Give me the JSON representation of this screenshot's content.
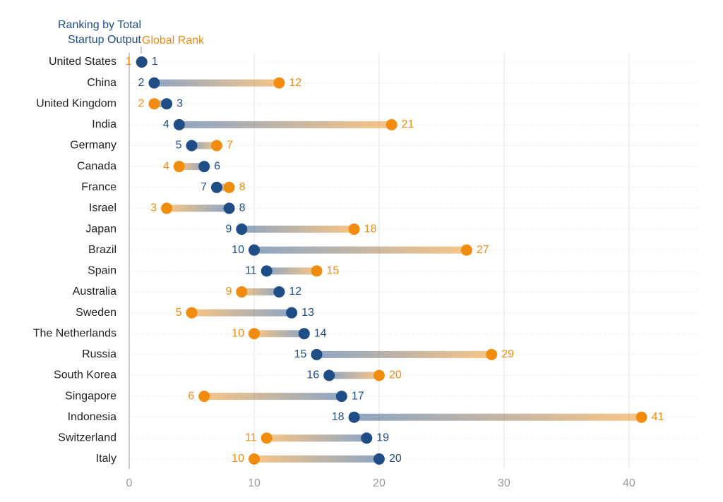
{
  "chart_data": {
    "type": "dumbbell",
    "categories": [
      "United States",
      "China",
      "United Kingdom",
      "India",
      "Germany",
      "Canada",
      "France",
      "Israel",
      "Japan",
      "Brazil",
      "Spain",
      "Australia",
      "Sweden",
      "The Netherlands",
      "Russia",
      "South Korea",
      "Singapore",
      "Indonesia",
      "Switzerland",
      "Italy"
    ],
    "series": [
      {
        "name": "Ranking by Total Startup Output",
        "color": "#1f4e87",
        "values": [
          1,
          2,
          3,
          4,
          5,
          6,
          7,
          8,
          9,
          10,
          11,
          12,
          13,
          14,
          15,
          16,
          17,
          18,
          19,
          20
        ]
      },
      {
        "name": "Global Rank",
        "color": "#f28c0f",
        "values": [
          1,
          12,
          2,
          21,
          7,
          4,
          8,
          3,
          18,
          27,
          15,
          9,
          5,
          10,
          29,
          20,
          6,
          41,
          11,
          10
        ]
      }
    ],
    "xlim": [
      0,
      45.6
    ],
    "xticks": [
      0,
      10,
      20,
      30,
      40
    ],
    "grid": true
  }
}
